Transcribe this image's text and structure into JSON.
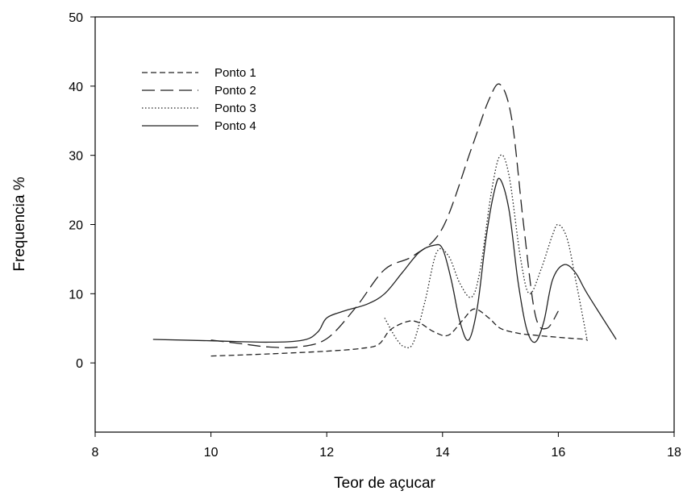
{
  "chart_data": {
    "type": "line",
    "title": "",
    "xlabel": "Teor de açucar",
    "ylabel": "Frequencia %",
    "xlim": [
      8,
      18
    ],
    "ylim": [
      -10,
      50
    ],
    "xticks": [
      8,
      10,
      12,
      14,
      16,
      18
    ],
    "yticks": [
      0,
      10,
      20,
      30,
      40,
      50
    ],
    "grid": false,
    "legend_position": "top-left",
    "series": [
      {
        "name": "Ponto 1",
        "style": "short-dash",
        "x": [
          10.0,
          11.0,
          12.0,
          12.6,
          12.9,
          13.1,
          13.4,
          13.6,
          13.85,
          14.1,
          14.35,
          14.55,
          14.8,
          15.0,
          15.3,
          15.6,
          16.0,
          16.5
        ],
        "y": [
          1.0,
          1.3,
          1.7,
          2.1,
          2.7,
          4.8,
          6.0,
          5.8,
          4.5,
          4.0,
          6.2,
          7.8,
          6.5,
          5.0,
          4.3,
          4.0,
          3.7,
          3.4
        ]
      },
      {
        "name": "Ponto 2",
        "style": "long-dash",
        "x": [
          10.0,
          10.5,
          11.0,
          11.5,
          12.0,
          12.5,
          13.0,
          13.5,
          14.0,
          14.5,
          14.8,
          15.0,
          15.2,
          15.4,
          15.6,
          15.8,
          16.0
        ],
        "y": [
          3.3,
          2.8,
          2.3,
          2.3,
          3.5,
          8.0,
          13.5,
          15.5,
          19.5,
          31.0,
          38.0,
          40.2,
          35.0,
          20.0,
          7.0,
          5.0,
          7.5
        ]
      },
      {
        "name": "Ponto 3",
        "style": "dotted",
        "x": [
          13.0,
          13.2,
          13.35,
          13.5,
          13.7,
          13.9,
          14.1,
          14.3,
          14.5,
          14.65,
          14.85,
          15.0,
          15.15,
          15.35,
          15.5,
          15.7,
          15.9,
          16.0,
          16.15,
          16.3,
          16.5
        ],
        "y": [
          6.5,
          3.5,
          2.3,
          3.0,
          9.0,
          16.0,
          15.5,
          11.5,
          9.5,
          13.5,
          25.0,
          30.0,
          27.0,
          15.0,
          10.0,
          13.5,
          18.5,
          20.0,
          18.0,
          12.0,
          3.2
        ]
      },
      {
        "name": "Ponto 4",
        "style": "solid",
        "x": [
          9.0,
          10.0,
          11.0,
          11.6,
          11.85,
          12.0,
          12.3,
          12.7,
          13.0,
          13.3,
          13.6,
          13.85,
          14.0,
          14.15,
          14.3,
          14.45,
          14.6,
          14.75,
          14.9,
          15.0,
          15.15,
          15.3,
          15.45,
          15.6,
          15.75,
          15.9,
          16.1,
          16.3,
          16.5,
          17.0
        ],
        "y": [
          3.4,
          3.2,
          3.0,
          3.3,
          4.5,
          6.5,
          7.5,
          8.5,
          10.0,
          13.0,
          16.0,
          17.0,
          16.5,
          12.0,
          6.0,
          3.3,
          8.0,
          18.0,
          25.0,
          26.5,
          22.0,
          12.0,
          5.0,
          3.0,
          6.0,
          12.0,
          14.2,
          13.0,
          10.0,
          3.4
        ]
      }
    ]
  }
}
